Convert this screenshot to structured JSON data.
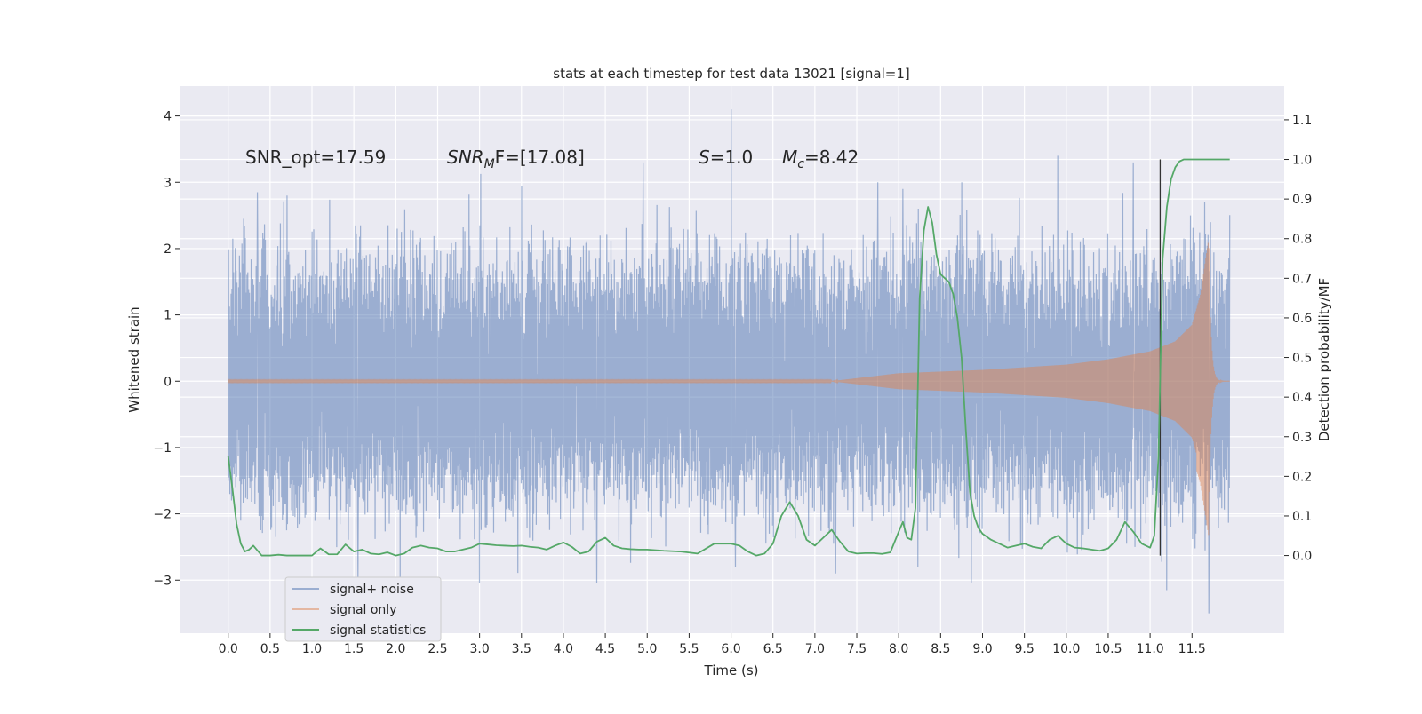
{
  "chart_data": {
    "type": "line",
    "title": "stats at each timestep for test data 13021 [signal=1]",
    "xlabel": "Time (s)",
    "ylabel_left": "Whitened strain",
    "ylabel_right": "Detection probability/MF",
    "xlim": [
      -0.58,
      12.6
    ],
    "ylim_left": [
      -3.8,
      4.45
    ],
    "ylim_right": [
      -0.196,
      1.185
    ],
    "x_ticks": [
      "0.0",
      "0.5",
      "1.0",
      "1.5",
      "2.0",
      "2.5",
      "3.0",
      "3.5",
      "4.0",
      "4.5",
      "5.0",
      "5.5",
      "6.0",
      "6.5",
      "7.0",
      "7.5",
      "8.0",
      "8.5",
      "9.0",
      "9.5",
      "10.0",
      "10.5",
      "11.0",
      "11.5"
    ],
    "y_ticks_left": [
      "4",
      "3",
      "2",
      "1",
      "0",
      "−1",
      "−2",
      "−3"
    ],
    "y_ticks_right": [
      "1.1",
      "1.0",
      "0.9",
      "0.8",
      "0.7",
      "0.6",
      "0.5",
      "0.4",
      "0.3",
      "0.2",
      "0.1",
      "0.0"
    ],
    "grid": true,
    "legend_position": "lower-left",
    "annotations": {
      "snr_opt": "SNR_opt=17.59",
      "snr_mf_italic": "SNR",
      "snr_mf_sub": "M",
      "snr_mf_tail": "F=[17.08]",
      "s_italic": "S",
      "s_tail": "=1.0",
      "mc_italic": "M",
      "mc_sub": "c",
      "mc_tail": "=8.42"
    },
    "vline_x": 11.12,
    "series": [
      {
        "name": "signal+ noise",
        "axis": "left",
        "color": "#4c72b0",
        "t_end": 11.95,
        "envelope_1sigma": 1.5,
        "peaks": [
          [
            0.35,
            2.85
          ],
          [
            0.7,
            2.8
          ],
          [
            1.55,
            -2.95
          ],
          [
            2.05,
            -2.95
          ],
          [
            3.0,
            -3.05
          ],
          [
            3.5,
            2.95
          ],
          [
            4.4,
            -3.05
          ],
          [
            4.95,
            3.3
          ],
          [
            6.0,
            4.1
          ],
          [
            6.05,
            -2.8
          ],
          [
            7.25,
            -2.9
          ],
          [
            7.75,
            3.0
          ],
          [
            8.05,
            2.9
          ],
          [
            8.75,
            3.0
          ],
          [
            9.9,
            3.4
          ],
          [
            10.8,
            3.3
          ],
          [
            11.2,
            -3.15
          ],
          [
            11.7,
            -3.5
          ],
          [
            11.65,
            2.7
          ]
        ]
      },
      {
        "name": "signal only",
        "axis": "left",
        "color": "#dd8452",
        "t_start": 7.2,
        "t_merger": 11.7,
        "t_end": 11.95,
        "amplitude_points": [
          [
            7.2,
            0.0
          ],
          [
            8.0,
            0.12
          ],
          [
            9.0,
            0.17
          ],
          [
            10.0,
            0.25
          ],
          [
            10.5,
            0.33
          ],
          [
            11.0,
            0.45
          ],
          [
            11.3,
            0.6
          ],
          [
            11.5,
            0.85
          ],
          [
            11.6,
            1.3
          ],
          [
            11.7,
            2.15
          ]
        ]
      },
      {
        "name": "signal statistics",
        "axis": "right",
        "color": "#55a868",
        "x": [
          0.0,
          0.05,
          0.1,
          0.15,
          0.2,
          0.25,
          0.3,
          0.4,
          0.5,
          0.6,
          0.7,
          0.8,
          1.0,
          1.1,
          1.2,
          1.3,
          1.4,
          1.5,
          1.6,
          1.7,
          1.8,
          1.9,
          2.0,
          2.1,
          2.2,
          2.3,
          2.4,
          2.5,
          2.6,
          2.7,
          2.8,
          2.9,
          3.0,
          3.1,
          3.2,
          3.3,
          3.4,
          3.5,
          3.6,
          3.7,
          3.8,
          3.9,
          4.0,
          4.1,
          4.2,
          4.3,
          4.4,
          4.5,
          4.6,
          4.7,
          4.8,
          4.9,
          5.0,
          5.2,
          5.4,
          5.6,
          5.8,
          6.0,
          6.1,
          6.2,
          6.3,
          6.4,
          6.5,
          6.6,
          6.7,
          6.8,
          6.9,
          7.0,
          7.1,
          7.2,
          7.3,
          7.4,
          7.5,
          7.6,
          7.7,
          7.8,
          7.9,
          8.0,
          8.05,
          8.1,
          8.15,
          8.2,
          8.25,
          8.3,
          8.35,
          8.4,
          8.45,
          8.5,
          8.55,
          8.6,
          8.65,
          8.7,
          8.75,
          8.8,
          8.85,
          8.9,
          8.95,
          9.0,
          9.1,
          9.2,
          9.3,
          9.4,
          9.5,
          9.6,
          9.7,
          9.8,
          9.9,
          10.0,
          10.1,
          10.2,
          10.3,
          10.4,
          10.5,
          10.6,
          10.7,
          10.8,
          10.9,
          11.0,
          11.05,
          11.1,
          11.15,
          11.2,
          11.25,
          11.3,
          11.35,
          11.4,
          11.5,
          11.6,
          11.7,
          11.8,
          11.9,
          11.95
        ],
        "y": [
          0.25,
          0.17,
          0.08,
          0.03,
          0.01,
          0.015,
          0.025,
          0.0,
          0.0,
          0.002,
          0.0,
          0.0,
          0.0,
          0.018,
          0.003,
          0.003,
          0.028,
          0.01,
          0.015,
          0.005,
          0.003,
          0.008,
          0.0,
          0.005,
          0.02,
          0.025,
          0.02,
          0.018,
          0.01,
          0.01,
          0.015,
          0.02,
          0.03,
          0.028,
          0.026,
          0.025,
          0.024,
          0.025,
          0.022,
          0.02,
          0.015,
          0.025,
          0.033,
          0.022,
          0.005,
          0.01,
          0.035,
          0.045,
          0.025,
          0.018,
          0.016,
          0.015,
          0.015,
          0.012,
          0.01,
          0.005,
          0.03,
          0.03,
          0.025,
          0.01,
          0.0,
          0.005,
          0.03,
          0.1,
          0.135,
          0.1,
          0.04,
          0.025,
          0.045,
          0.065,
          0.035,
          0.01,
          0.005,
          0.006,
          0.006,
          0.004,
          0.008,
          0.06,
          0.085,
          0.045,
          0.04,
          0.12,
          0.65,
          0.82,
          0.88,
          0.84,
          0.76,
          0.71,
          0.7,
          0.69,
          0.66,
          0.6,
          0.5,
          0.32,
          0.16,
          0.1,
          0.07,
          0.055,
          0.04,
          0.03,
          0.02,
          0.025,
          0.03,
          0.022,
          0.018,
          0.04,
          0.05,
          0.03,
          0.02,
          0.018,
          0.015,
          0.012,
          0.018,
          0.04,
          0.085,
          0.06,
          0.03,
          0.02,
          0.05,
          0.25,
          0.75,
          0.88,
          0.95,
          0.98,
          0.995,
          1.0,
          1.0,
          1.0,
          1.0,
          1.0,
          1.0,
          1.0
        ]
      }
    ]
  }
}
